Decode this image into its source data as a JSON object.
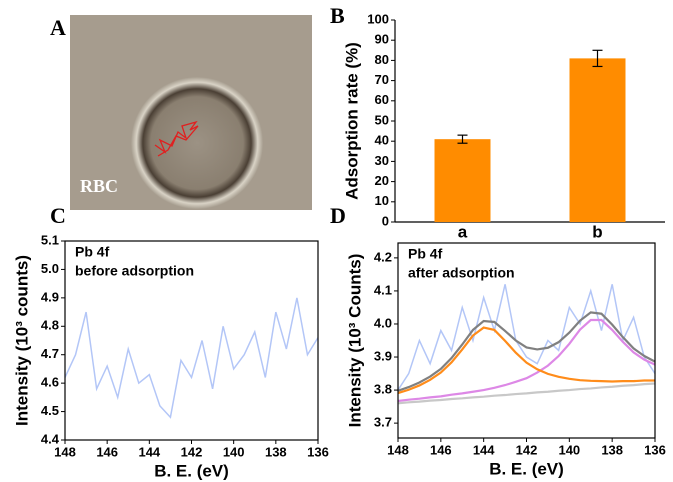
{
  "panel_a": {
    "label": "A",
    "caption": "RBC"
  },
  "chart_data": [
    {
      "type": "bar",
      "panel_label": "B",
      "y_label": "Adsorption rate (%)",
      "categories": [
        "a",
        "b"
      ],
      "values": [
        41,
        81
      ],
      "errors": [
        2,
        4
      ],
      "color": "#ff8c00",
      "ylim": [
        0,
        100
      ],
      "yticks": [
        0,
        10,
        20,
        30,
        40,
        50,
        60,
        70,
        80,
        90,
        100
      ]
    },
    {
      "type": "line",
      "panel_label": "C",
      "annotations": [
        "Pb 4f",
        "before adsorption"
      ],
      "x_label": "B. E. (eV)",
      "y_label": "Intensity (10³ counts)",
      "x": [
        148,
        147.5,
        147,
        146.5,
        146,
        145.5,
        145,
        144.5,
        144,
        143.5,
        143,
        142.5,
        142,
        141.5,
        141,
        140.5,
        140,
        139.5,
        139,
        138.5,
        138,
        137.5,
        137,
        136.5,
        136
      ],
      "series": [
        {
          "color": "#b3c6f7",
          "values": [
            4.62,
            4.7,
            4.85,
            4.58,
            4.66,
            4.55,
            4.72,
            4.6,
            4.63,
            4.52,
            4.48,
            4.68,
            4.62,
            4.75,
            4.58,
            4.8,
            4.65,
            4.7,
            4.78,
            4.62,
            4.85,
            4.72,
            4.9,
            4.7,
            4.76
          ]
        }
      ],
      "xlim": [
        148,
        136
      ],
      "xticks": [
        148,
        146,
        144,
        142,
        140,
        138,
        136
      ],
      "ylim": [
        4.4,
        5.1
      ],
      "yticks": [
        4.4,
        4.5,
        4.6,
        4.7,
        4.8,
        4.9,
        {
          "value": 5,
          "label": "5.0"
        },
        5.1
      ]
    },
    {
      "type": "line",
      "panel_label": "D",
      "annotations": [
        "Pb 4f",
        "after adsorption"
      ],
      "x_label": "B. E. (eV)",
      "y_label": "Intensity (10³ Counts)",
      "x": [
        148,
        147.5,
        147,
        146.5,
        146,
        145.5,
        145,
        144.5,
        144,
        143.5,
        143,
        142.5,
        142,
        141.5,
        141,
        140.5,
        140,
        139.5,
        139,
        138.5,
        138,
        137.5,
        137,
        136.5,
        136
      ],
      "series": [
        {
          "color": "#b3c6f7",
          "values": [
            3.8,
            3.85,
            3.95,
            3.88,
            3.98,
            3.92,
            4.05,
            3.95,
            4.08,
            3.98,
            4.12,
            3.95,
            3.9,
            3.88,
            3.95,
            3.92,
            4.05,
            4.0,
            4.1,
            3.98,
            4.12,
            3.95,
            4.02,
            3.9,
            3.85
          ]
        },
        {
          "color": "#c8c8c8",
          "values": [
            3.76,
            3.763,
            3.765,
            3.768,
            3.77,
            3.773,
            3.775,
            3.778,
            3.78,
            3.783,
            3.785,
            3.788,
            3.79,
            3.793,
            3.795,
            3.798,
            3.8,
            3.803,
            3.805,
            3.808,
            3.81,
            3.813,
            3.815,
            3.818,
            3.82
          ]
        },
        {
          "color": "#dd88e6",
          "values": [
            3.767,
            3.771,
            3.774,
            3.778,
            3.781,
            3.786,
            3.79,
            3.795,
            3.8,
            3.807,
            3.815,
            3.825,
            3.836,
            3.853,
            3.874,
            3.903,
            3.94,
            3.983,
            4.012,
            4.012,
            3.982,
            3.946,
            3.914,
            3.892,
            3.877
          ]
        },
        {
          "color": "#ff8c1a",
          "values": [
            3.791,
            3.801,
            3.814,
            3.831,
            3.853,
            3.884,
            3.923,
            3.965,
            3.989,
            3.982,
            3.949,
            3.913,
            3.883,
            3.863,
            3.849,
            3.84,
            3.834,
            3.83,
            3.828,
            3.827,
            3.826,
            3.827,
            3.827,
            3.829,
            3.829
          ]
        },
        {
          "color": "#808080",
          "values": [
            3.798,
            3.809,
            3.823,
            3.841,
            3.864,
            3.897,
            3.938,
            3.982,
            4.009,
            4.006,
            3.979,
            3.95,
            3.929,
            3.923,
            3.928,
            3.945,
            3.974,
            4.01,
            4.035,
            4.031,
            3.998,
            3.96,
            3.926,
            3.903,
            3.886
          ]
        }
      ],
      "xlim": [
        148,
        136
      ],
      "xticks": [
        148,
        146,
        144,
        142,
        140,
        138,
        136
      ],
      "ylim": [
        3.655,
        4.245
      ],
      "yticks": [
        3.7,
        3.8,
        3.9,
        {
          "value": 4,
          "label": "4.0"
        },
        4.1,
        4.2
      ]
    }
  ]
}
